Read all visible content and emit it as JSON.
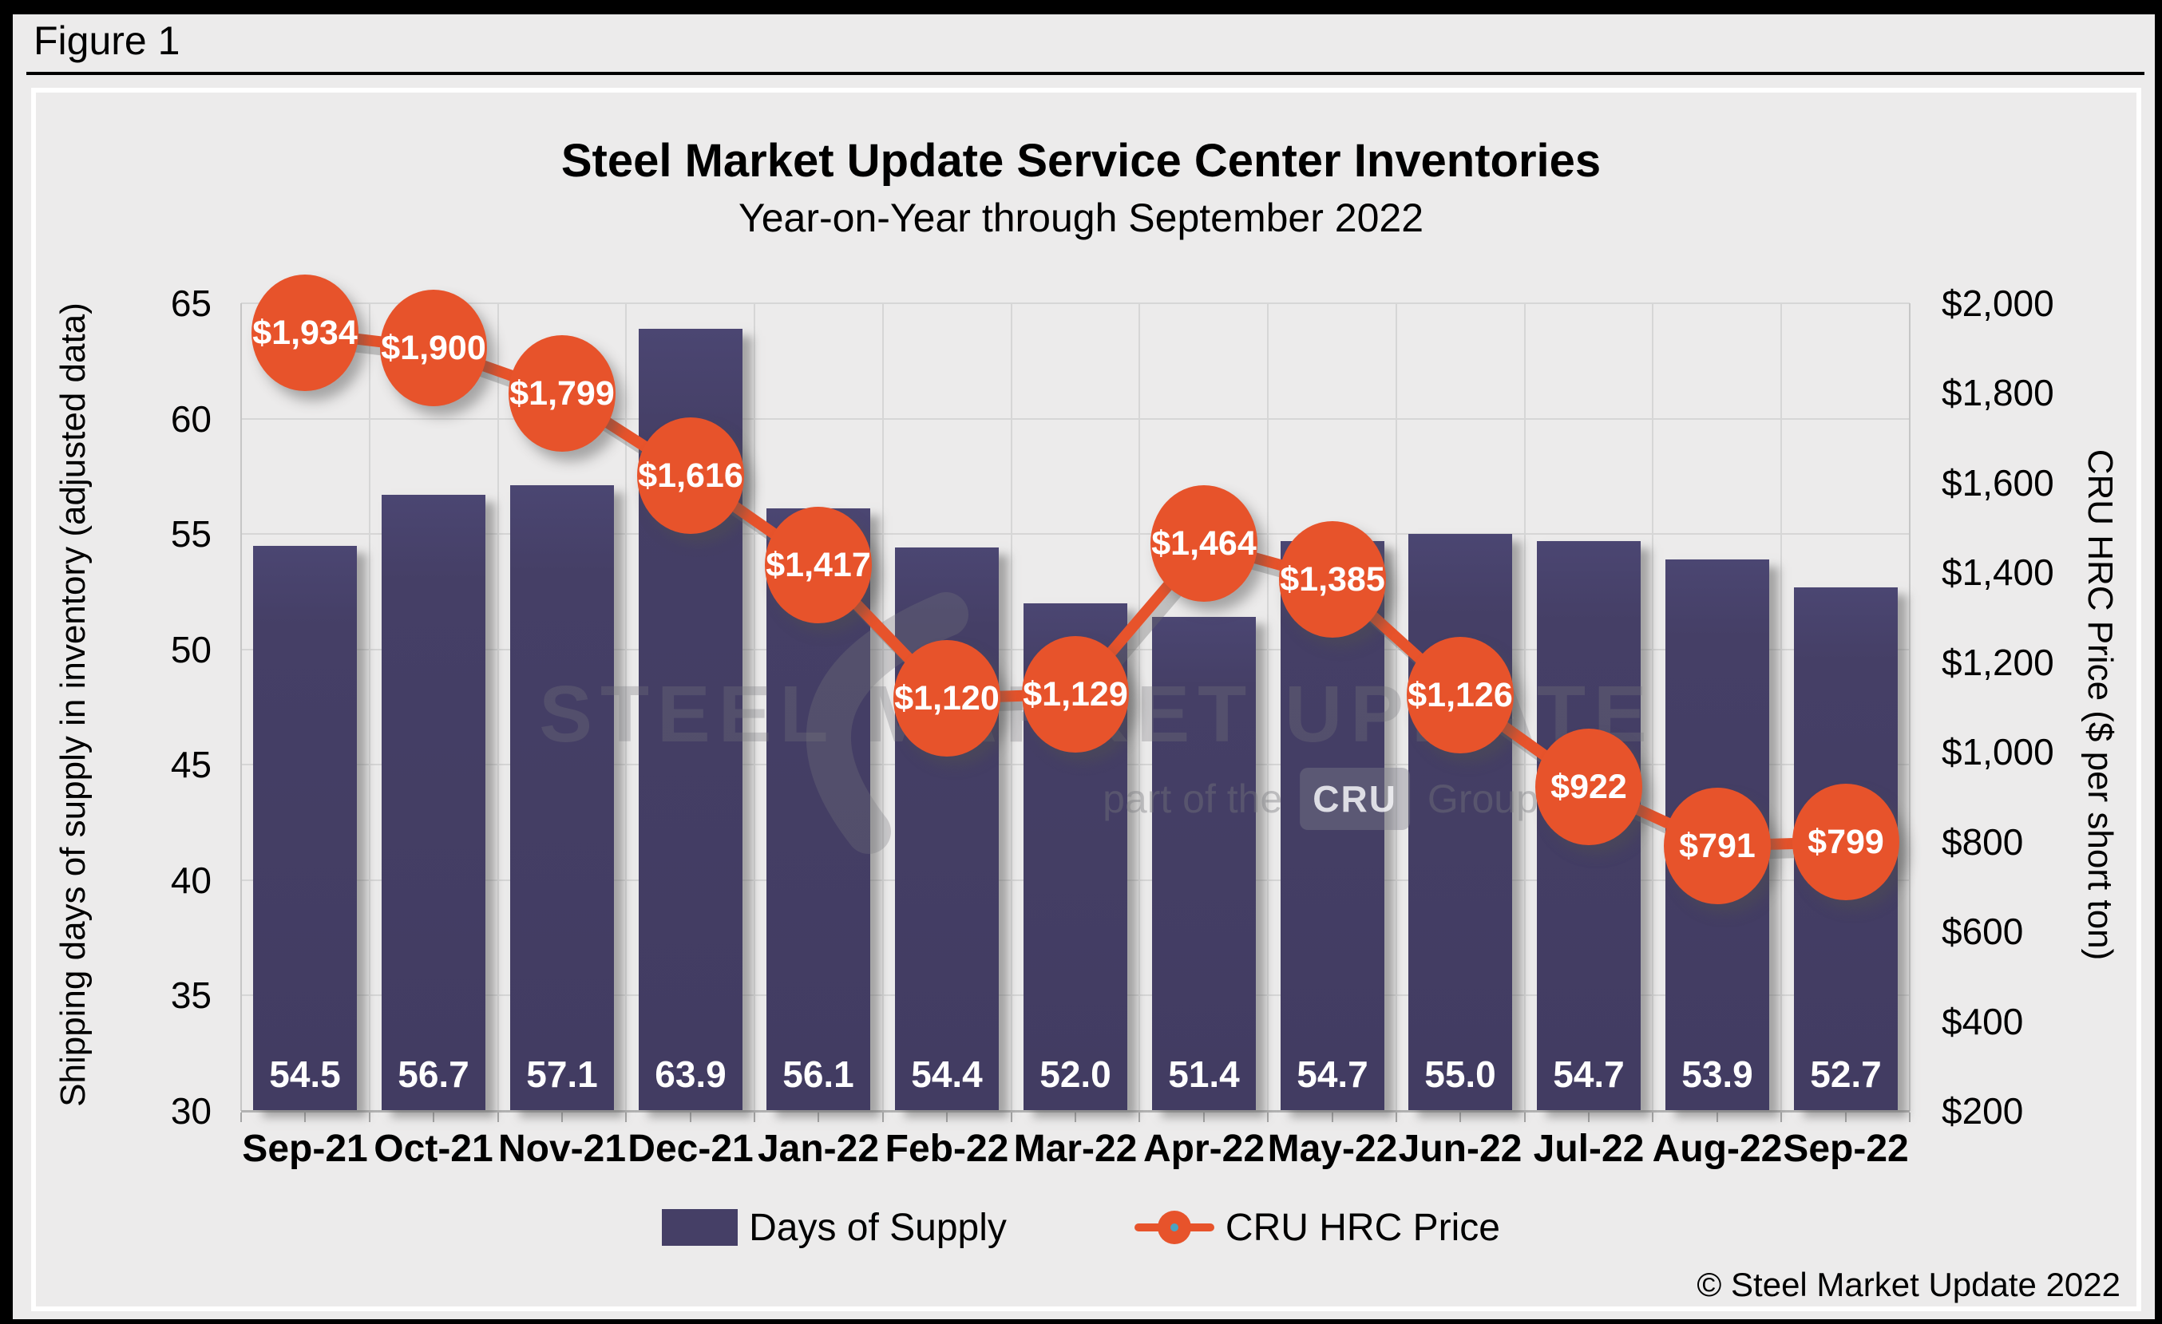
{
  "header": {
    "figure_label": "Figure 1"
  },
  "chart": {
    "title": "Steel Market Update Service Center Inventories",
    "subtitle": "Year-on-Year through September 2022"
  },
  "chart_data": {
    "type": "combo-bar-line",
    "categories": [
      "Sep-21",
      "Oct-21",
      "Nov-21",
      "Dec-21",
      "Jan-22",
      "Feb-22",
      "Mar-22",
      "Apr-22",
      "May-22",
      "Jun-22",
      "Jul-22",
      "Aug-22",
      "Sep-22"
    ],
    "series": [
      {
        "name": "Days of Supply",
        "type": "bar",
        "axis": "left",
        "color": "#453f66",
        "values": [
          54.5,
          56.7,
          57.1,
          63.9,
          56.1,
          54.4,
          52.0,
          51.4,
          54.7,
          55.0,
          54.7,
          53.9,
          52.7
        ],
        "labels": [
          "54.5",
          "56.7",
          "57.1",
          "63.9",
          "56.1",
          "54.4",
          "52.0",
          "51.4",
          "54.7",
          "55.0",
          "54.7",
          "53.9",
          "52.7"
        ]
      },
      {
        "name": "CRU HRC Price",
        "type": "line",
        "axis": "right",
        "color": "#e7532b",
        "values": [
          1934,
          1900,
          1799,
          1616,
          1417,
          1120,
          1129,
          1464,
          1385,
          1126,
          922,
          791,
          799
        ],
        "labels": [
          "$1,934",
          "$1,900",
          "$1,799",
          "$1,616",
          "$1,417",
          "$1,120",
          "$1,129",
          "$1,464",
          "$1,385",
          "$1,126",
          "$922",
          "$791",
          "$799"
        ]
      }
    ],
    "left_axis": {
      "title": "Shipping days of supply in inventory (adjusted data)",
      "min": 30,
      "max": 65,
      "ticks": [
        {
          "label": "30",
          "value": 30
        },
        {
          "label": "35",
          "value": 35
        },
        {
          "label": "40",
          "value": 40
        },
        {
          "label": "45",
          "value": 45
        },
        {
          "label": "50",
          "value": 50
        },
        {
          "label": "55",
          "value": 55
        },
        {
          "label": "60",
          "value": 60
        },
        {
          "label": "65",
          "value": 65
        }
      ]
    },
    "right_axis": {
      "title": "CRU HRC Price ($ per short ton)",
      "min": 200,
      "max": 2000,
      "ticks": [
        {
          "label": "$200",
          "value": 200
        },
        {
          "label": "$400",
          "value": 400
        },
        {
          "label": "$600",
          "value": 600
        },
        {
          "label": "$800",
          "value": 800
        },
        {
          "label": "$1,000",
          "value": 1000
        },
        {
          "label": "$1,200",
          "value": 1200
        },
        {
          "label": "$1,400",
          "value": 1400
        },
        {
          "label": "$1,600",
          "value": 1600
        },
        {
          "label": "$1,800",
          "value": 1800
        },
        {
          "label": "$2,000",
          "value": 2000
        }
      ]
    },
    "grid": "horizontal-major and vertical-category",
    "legend_position": "bottom"
  },
  "legend": {
    "marker_dot_color": "#4aa3c2"
  },
  "watermark": {
    "line1": "STEEL MARKET UPDATE",
    "part_prefix": "part of the",
    "cru": "CRU",
    "group": "Group"
  },
  "copyright": "© Steel Market Update 2022"
}
